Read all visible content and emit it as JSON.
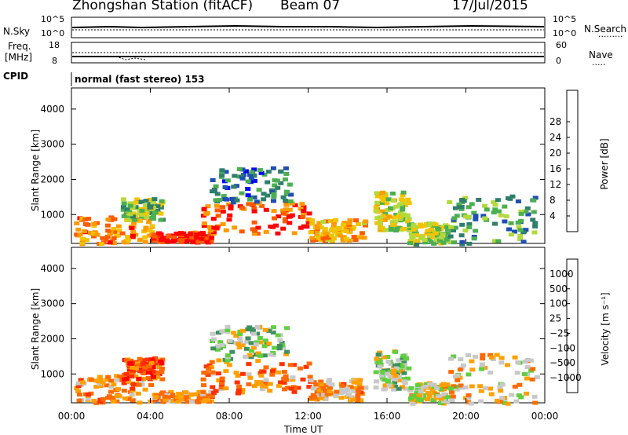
{
  "header": {
    "station": "Zhongshan Station (fitACF)",
    "beam": "Beam 07",
    "date": "17/Jul/2015"
  },
  "top_panel": {
    "nsky_label": "N.Sky",
    "nsky_ticks": [
      "10^5",
      "10^0"
    ],
    "nsearch_label": "N.Search",
    "nsearch_ticks": [
      "10^5",
      "10^0"
    ],
    "freq_label": "Freq.",
    "freq_unit": "[MHz]",
    "freq_ticks": [
      "18",
      "8"
    ],
    "nave_label": "Nave",
    "nave_ticks": [
      "60",
      "0"
    ],
    "cpid_label": "CPID",
    "cpid_value": "normal (fast stereo) 153"
  },
  "chart_data": [
    {
      "type": "heatmap",
      "title": "",
      "xlabel": "Time UT",
      "ylabel": "Slant Range [km]",
      "x_ticks": [
        "00:00",
        "04:00",
        "08:00",
        "12:00",
        "16:00",
        "20:00",
        "00:00"
      ],
      "xlim": [
        0,
        24
      ],
      "y_ticks": [
        1000,
        2000,
        3000,
        4000
      ],
      "ylim": [
        180,
        4600
      ],
      "colorbar": {
        "label": "Power [dB]",
        "ticks": [
          "4",
          "8",
          "12",
          "16",
          "20",
          "24",
          "28"
        ],
        "colors": [
          "#0000ff",
          "#1f4fb3",
          "#2f7f6a",
          "#4caf50",
          "#b5d93a",
          "#f2c300",
          "#ff9a00",
          "#ff5a00",
          "#ff0000"
        ]
      },
      "echo_regions": [
        {
          "t": [
            0.1,
            4.0
          ],
          "r": [
            200,
            1000
          ],
          "level": 0.75
        },
        {
          "t": [
            2.5,
            4.5
          ],
          "r": [
            900,
            1500
          ],
          "level": 0.45
        },
        {
          "t": [
            4.0,
            7.0
          ],
          "r": [
            250,
            550
          ],
          "level": 0.95
        },
        {
          "t": [
            6.5,
            12.0
          ],
          "r": [
            500,
            1400
          ],
          "level": 0.85
        },
        {
          "t": [
            12.0,
            14.8
          ],
          "r": [
            300,
            900
          ],
          "level": 0.7
        },
        {
          "t": [
            7.0,
            11.0
          ],
          "r": [
            1400,
            2400
          ],
          "level": 0.25
        },
        {
          "t": [
            15.3,
            17.0
          ],
          "r": [
            600,
            1700
          ],
          "level": 0.55
        },
        {
          "t": [
            17.0,
            19.0
          ],
          "r": [
            200,
            800
          ],
          "level": 0.5
        },
        {
          "t": [
            19.0,
            23.5
          ],
          "r": [
            200,
            1600
          ],
          "level": 0.35
        }
      ]
    },
    {
      "type": "heatmap",
      "title": "",
      "xlabel": "Time UT",
      "ylabel": "Slant Range [km]",
      "x_ticks": [
        "00:00",
        "04:00",
        "08:00",
        "12:00",
        "16:00",
        "20:00",
        "00:00"
      ],
      "xlim": [
        0,
        24
      ],
      "y_ticks": [
        1000,
        2000,
        3000,
        4000
      ],
      "ylim": [
        180,
        4600
      ],
      "colorbar": {
        "label": "Velocity [m s⁻¹]",
        "ticks": [
          "1000",
          "500",
          "100",
          "25",
          "−25",
          "−100",
          "−500",
          "−1000"
        ],
        "colors": [
          "#1f3fbf",
          "#2f6f8f",
          "#3f8f5f",
          "#5fcf3f",
          "#c8c8c8",
          "#ffa000",
          "#ff6a00",
          "#ff3000",
          "#ff0000"
        ]
      },
      "echo_regions": [
        {
          "t": [
            0.1,
            4.0
          ],
          "r": [
            200,
            1000
          ],
          "level": 0.65
        },
        {
          "t": [
            2.5,
            4.5
          ],
          "r": [
            900,
            1500
          ],
          "level": 0.8
        },
        {
          "t": [
            4.0,
            7.0
          ],
          "r": [
            250,
            550
          ],
          "level": 0.62
        },
        {
          "t": [
            6.5,
            12.0
          ],
          "r": [
            500,
            1400
          ],
          "level": 0.7
        },
        {
          "t": [
            12.0,
            14.8
          ],
          "r": [
            300,
            900
          ],
          "level": 0.62
        },
        {
          "t": [
            7.0,
            11.0
          ],
          "r": [
            1400,
            2400
          ],
          "level": 0.45
        },
        {
          "t": [
            15.3,
            17.0
          ],
          "r": [
            600,
            1700
          ],
          "level": 0.45
        },
        {
          "t": [
            17.0,
            19.0
          ],
          "r": [
            200,
            800
          ],
          "level": 0.5
        },
        {
          "t": [
            19.0,
            23.5
          ],
          "r": [
            200,
            1600
          ],
          "level": 0.58
        }
      ]
    }
  ],
  "colors": {
    "axis": "#000000",
    "background": "#ffffff"
  }
}
